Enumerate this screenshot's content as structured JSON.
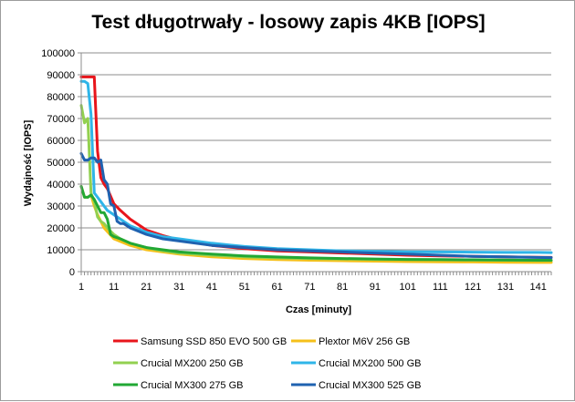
{
  "chart_data": {
    "type": "line",
    "title": "Test długotrwały - losowy zapis 4KB [IOPS]",
    "xlabel": "Czas [minuty]",
    "ylabel": "Wydajność [IOPS]",
    "xlim": [
      1,
      145
    ],
    "ylim": [
      0,
      100000
    ],
    "yticks": [
      0,
      10000,
      20000,
      30000,
      40000,
      50000,
      60000,
      70000,
      80000,
      90000,
      100000
    ],
    "xticks": [
      1,
      11,
      21,
      31,
      41,
      51,
      61,
      71,
      81,
      91,
      101,
      111,
      121,
      131,
      141
    ],
    "grid": "horizontal",
    "legend": "bottom",
    "series": [
      {
        "name": "Samsung SSD 850 EVO 500 GB",
        "color": "#e8151b",
        "x": [
          1,
          2,
          3,
          4,
          5,
          6,
          7,
          8,
          9,
          11,
          13,
          16,
          21,
          26,
          31,
          41,
          51,
          61,
          71,
          81,
          91,
          101,
          111,
          121,
          131,
          141,
          145
        ],
        "y": [
          89000,
          89000,
          89000,
          89000,
          89000,
          55000,
          43000,
          40000,
          38000,
          31000,
          28000,
          24000,
          19000,
          16500,
          14500,
          12000,
          10500,
          9500,
          9000,
          8500,
          8000,
          7500,
          7200,
          7000,
          6800,
          6600,
          6500
        ]
      },
      {
        "name": "Plextor M6V 256 GB",
        "color": "#f5c01a",
        "x": [
          1,
          2,
          3,
          4,
          5,
          6,
          7,
          8,
          11,
          16,
          21,
          26,
          31,
          41,
          51,
          61,
          71,
          81,
          91,
          101,
          111,
          121,
          131,
          141,
          145
        ],
        "y": [
          39000,
          34000,
          34000,
          35000,
          30000,
          26000,
          23000,
          20000,
          15000,
          12000,
          10000,
          9000,
          8000,
          6800,
          6000,
          5500,
          5200,
          5000,
          4800,
          4600,
          4500,
          4400,
          4300,
          4200,
          4200
        ]
      },
      {
        "name": "Crucial MX200 250 GB",
        "color": "#92d050",
        "x": [
          1,
          2,
          3,
          4,
          5,
          6,
          7,
          8,
          9,
          11,
          13,
          16,
          21,
          26,
          31,
          41,
          51,
          61,
          71,
          81,
          91,
          101,
          111,
          121,
          131,
          141,
          145
        ],
        "y": [
          76000,
          68000,
          70000,
          36000,
          32000,
          25000,
          23000,
          22000,
          20000,
          17000,
          15000,
          13000,
          11000,
          9500,
          8500,
          7500,
          6800,
          6300,
          6000,
          5800,
          5600,
          5500,
          5400,
          5300,
          5200,
          5100,
          5100
        ]
      },
      {
        "name": "Crucial MX200 500 GB",
        "color": "#2fb5e8",
        "x": [
          1,
          2,
          3,
          4,
          5,
          6,
          7,
          8,
          9,
          11,
          13,
          16,
          21,
          26,
          31,
          41,
          51,
          61,
          71,
          81,
          91,
          101,
          111,
          121,
          131,
          141,
          145
        ],
        "y": [
          87000,
          87000,
          86000,
          72000,
          36000,
          34000,
          32000,
          30000,
          28000,
          26000,
          24000,
          21000,
          18000,
          16000,
          15000,
          13000,
          11500,
          10500,
          10000,
          9500,
          9300,
          9100,
          9000,
          8900,
          8800,
          8800,
          8700
        ]
      },
      {
        "name": "Crucial MX300 275 GB",
        "color": "#22a834",
        "x": [
          1,
          2,
          3,
          4,
          5,
          6,
          7,
          8,
          9,
          10,
          11,
          13,
          16,
          21,
          26,
          31,
          41,
          51,
          61,
          71,
          81,
          91,
          101,
          111,
          121,
          131,
          141,
          145
        ],
        "y": [
          39000,
          34000,
          34000,
          35000,
          33000,
          30000,
          27000,
          27000,
          24000,
          17000,
          16000,
          15000,
          13000,
          11000,
          10000,
          9000,
          8000,
          7200,
          6700,
          6300,
          6000,
          5800,
          5600,
          5500,
          5400,
          5300,
          5200,
          5200
        ]
      },
      {
        "name": "Crucial MX300 525 GB",
        "color": "#1f62b0",
        "x": [
          1,
          2,
          3,
          4,
          5,
          6,
          7,
          8,
          9,
          10,
          11,
          12,
          13,
          14,
          16,
          21,
          26,
          31,
          41,
          51,
          61,
          71,
          81,
          91,
          101,
          111,
          121,
          131,
          141,
          145
        ],
        "y": [
          54000,
          51000,
          51000,
          52000,
          52000,
          50000,
          51000,
          42000,
          40000,
          31000,
          30000,
          23000,
          22000,
          22000,
          20000,
          17000,
          15000,
          14000,
          12000,
          11000,
          10000,
          9500,
          9000,
          8500,
          8000,
          7500,
          7000,
          6800,
          6500,
          6400
        ]
      }
    ]
  }
}
